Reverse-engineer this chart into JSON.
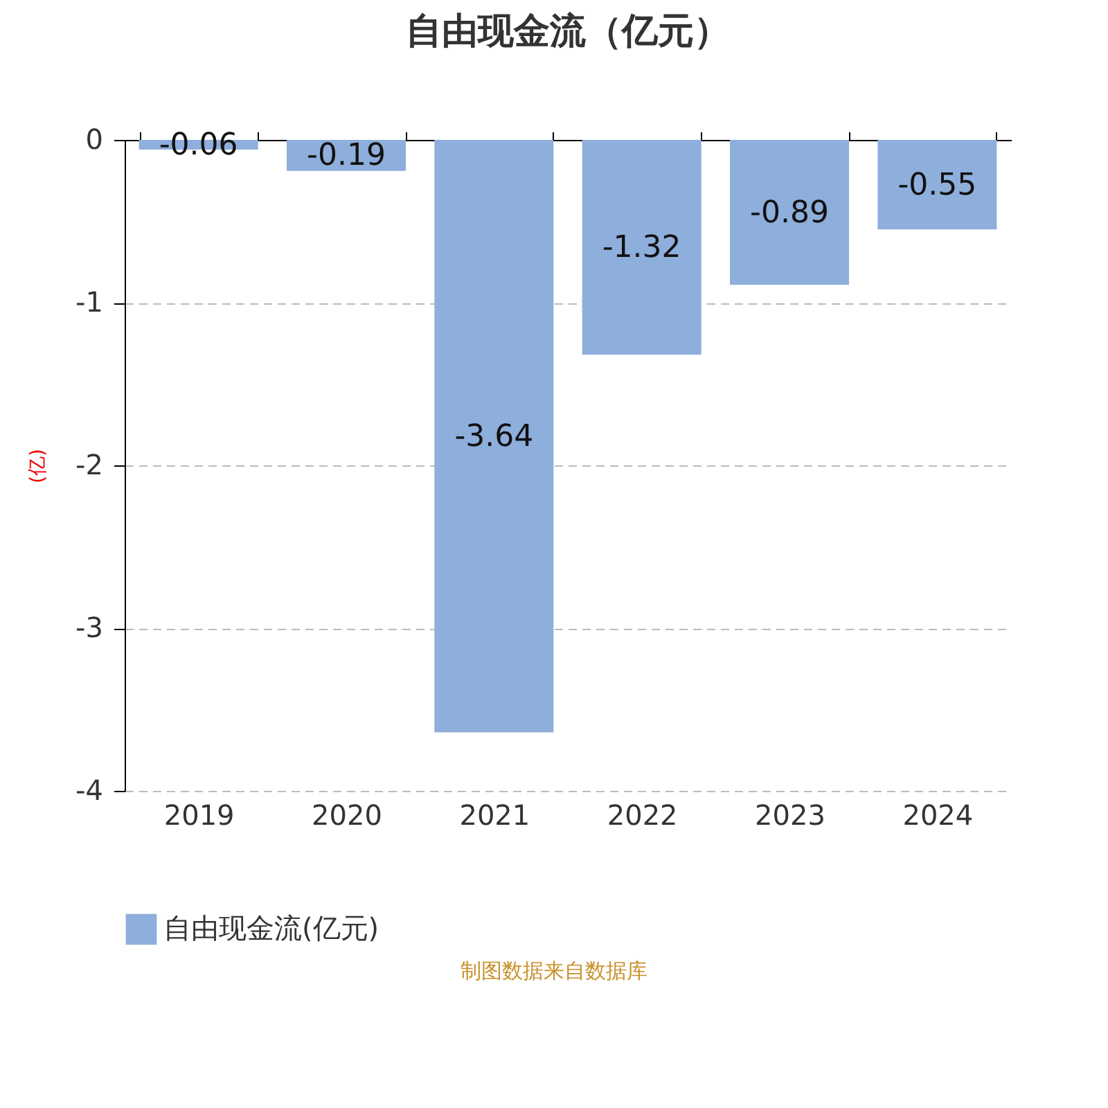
{
  "chart_data": {
    "type": "bar",
    "title": "自由现金流（亿元）",
    "ylabel": "(亿)",
    "categories": [
      "2019",
      "2020",
      "2021",
      "2022",
      "2023",
      "2024"
    ],
    "series": [
      {
        "name": "自由现金流(亿元)",
        "color": "#8eaedb",
        "values": [
          -0.06,
          -0.19,
          -3.64,
          -1.32,
          -0.89,
          -0.55
        ]
      }
    ],
    "ylim": [
      -4,
      0
    ],
    "yticks": [
      -4,
      -3,
      -2,
      -1,
      0
    ],
    "grid": "y",
    "legend": "bottom",
    "data_labels": true,
    "annotations": [
      "制图数据来自数据库"
    ]
  }
}
